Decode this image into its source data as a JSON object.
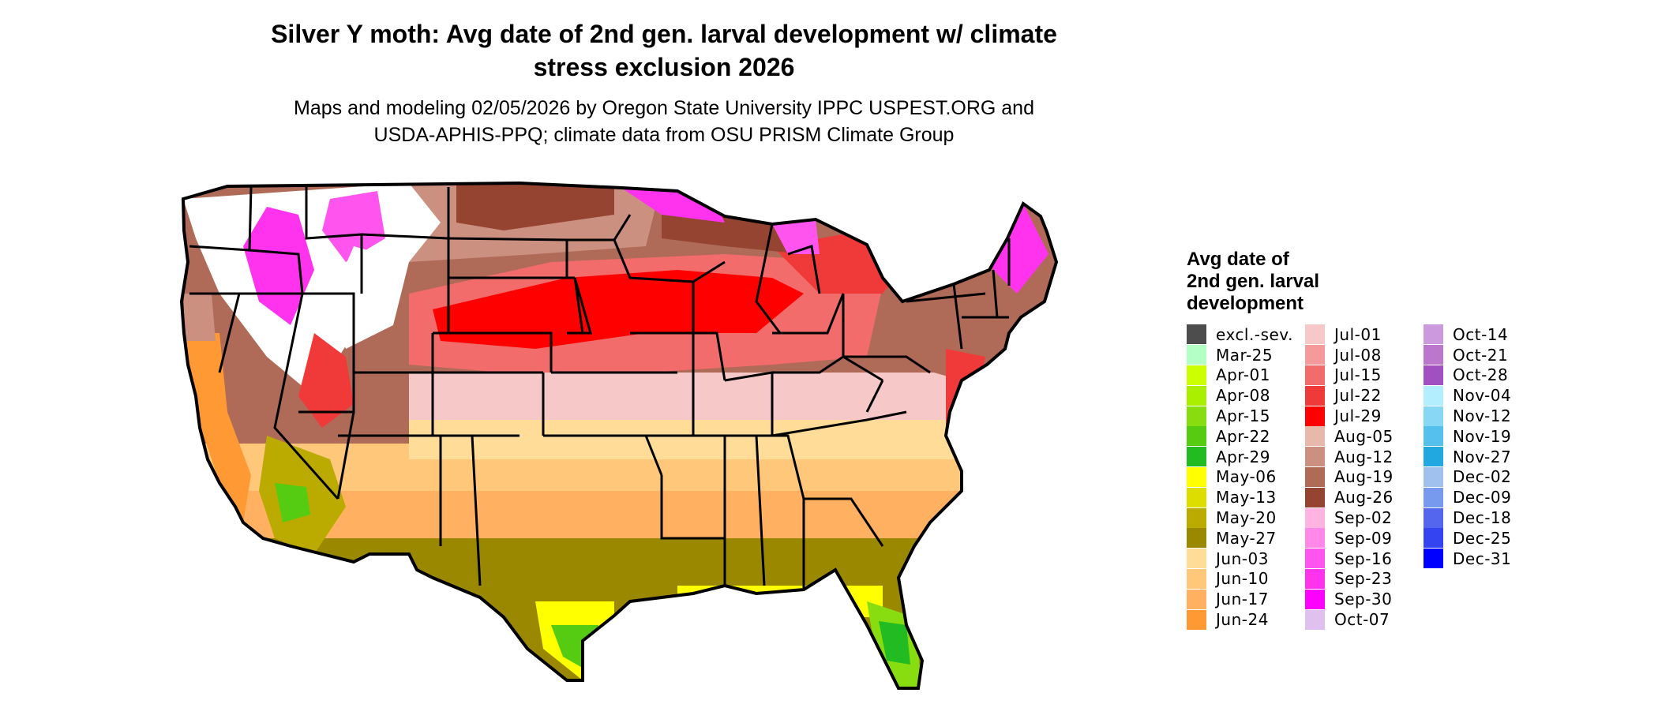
{
  "title_line1": "Silver Y moth: Avg date of 2nd gen. larval development w/ climate",
  "title_line2": "stress exclusion 2026",
  "subtitle_line1": "Maps and modeling 02/05/2026 by Oregon State University IPPC USPEST.ORG and",
  "subtitle_line2": "USDA-APHIS-PPQ; climate data from OSU PRISM Climate Group",
  "legend": {
    "title_line1": "Avg date of",
    "title_line2": "2nd gen. larval",
    "title_line3": "development",
    "columns": [
      [
        {
          "label": "excl.-sev.",
          "color": "#4d4d4d"
        },
        {
          "label": "Mar-25",
          "color": "#b3ffc4"
        },
        {
          "label": "Apr-01",
          "color": "#ccff00"
        },
        {
          "label": "Apr-08",
          "color": "#aaee00"
        },
        {
          "label": "Apr-15",
          "color": "#88dd10"
        },
        {
          "label": "Apr-22",
          "color": "#55cc11"
        },
        {
          "label": "Apr-29",
          "color": "#22bb22"
        },
        {
          "label": "May-06",
          "color": "#ffff00"
        },
        {
          "label": "May-13",
          "color": "#dddd00"
        },
        {
          "label": "May-20",
          "color": "#bbaa00"
        },
        {
          "label": "May-27",
          "color": "#998800"
        },
        {
          "label": "Jun-03",
          "color": "#ffdd99"
        },
        {
          "label": "Jun-10",
          "color": "#ffc77a"
        },
        {
          "label": "Jun-17",
          "color": "#ffb060"
        },
        {
          "label": "Jun-24",
          "color": "#ff9933"
        }
      ],
      [
        {
          "label": "Jul-01",
          "color": "#f7c8c8"
        },
        {
          "label": "Jul-08",
          "color": "#f59a9a"
        },
        {
          "label": "Jul-15",
          "color": "#f26c6c"
        },
        {
          "label": "Jul-22",
          "color": "#f03a3a"
        },
        {
          "label": "Jul-29",
          "color": "#ff0000"
        },
        {
          "label": "Aug-05",
          "color": "#e8b8aa"
        },
        {
          "label": "Aug-12",
          "color": "#cc9080"
        },
        {
          "label": "Aug-19",
          "color": "#b06a58"
        },
        {
          "label": "Aug-26",
          "color": "#944430"
        },
        {
          "label": "Sep-02",
          "color": "#ffb3e0"
        },
        {
          "label": "Sep-09",
          "color": "#ff88e8"
        },
        {
          "label": "Sep-16",
          "color": "#ff55ee"
        },
        {
          "label": "Sep-23",
          "color": "#ff33ee"
        },
        {
          "label": "Sep-30",
          "color": "#ff00ff"
        },
        {
          "label": "Oct-07",
          "color": "#e0c0ee"
        }
      ],
      [
        {
          "label": "Oct-14",
          "color": "#cc99dd"
        },
        {
          "label": "Oct-21",
          "color": "#bb77cc"
        },
        {
          "label": "Oct-28",
          "color": "#a050c0"
        },
        {
          "label": "Nov-04",
          "color": "#b3eeff"
        },
        {
          "label": "Nov-12",
          "color": "#88d8f5"
        },
        {
          "label": "Nov-19",
          "color": "#55c0ee"
        },
        {
          "label": "Nov-27",
          "color": "#22a8e0"
        },
        {
          "label": "Dec-02",
          "color": "#a0c0ee"
        },
        {
          "label": "Dec-09",
          "color": "#7799ee"
        },
        {
          "label": "Dec-18",
          "color": "#5566ee"
        },
        {
          "label": "Dec-25",
          "color": "#3344f0"
        },
        {
          "label": "Dec-31",
          "color": "#0000ff"
        }
      ]
    ]
  }
}
